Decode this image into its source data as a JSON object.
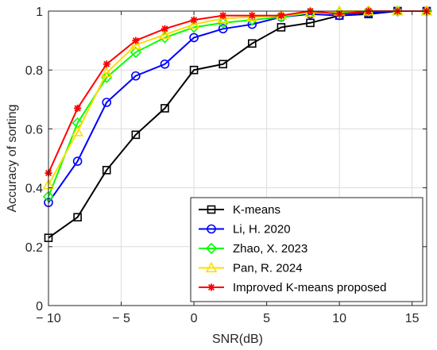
{
  "chart_data": {
    "type": "line",
    "title": "",
    "xlabel": "SNR(dB)",
    "ylabel": "Accuracy of sorting",
    "xlim": [
      -10,
      16
    ],
    "ylim": [
      0,
      1
    ],
    "xticks": [
      -10,
      -5,
      0,
      5,
      10,
      15
    ],
    "xtick_labels": [
      "− 10",
      "− 5",
      "0",
      "5",
      "10",
      "15"
    ],
    "yticks": [
      0,
      0.2,
      0.4,
      0.6,
      0.8,
      1
    ],
    "ytick_labels": [
      "0",
      "0.2",
      "0.4",
      "0.6",
      "0.8",
      "1"
    ],
    "grid": true,
    "legend_position": "bottom-right",
    "x": [
      -10,
      -8,
      -6,
      -4,
      -2,
      0,
      2,
      4,
      6,
      8,
      10,
      12,
      14,
      16
    ],
    "series": [
      {
        "name": "K-means",
        "color": "#000000",
        "marker": "square",
        "values": [
          0.23,
          0.3,
          0.46,
          0.58,
          0.67,
          0.8,
          0.82,
          0.89,
          0.945,
          0.96,
          0.985,
          0.99,
          1.0,
          1.0
        ]
      },
      {
        "name": "Li, H. 2020",
        "color": "#0000ff",
        "marker": "circle",
        "values": [
          0.35,
          0.49,
          0.69,
          0.78,
          0.82,
          0.91,
          0.94,
          0.955,
          0.98,
          0.99,
          0.985,
          0.995,
          1.0,
          1.0
        ]
      },
      {
        "name": "Zhao, X. 2023",
        "color": "#00ff00",
        "marker": "diamond",
        "values": [
          0.37,
          0.62,
          0.775,
          0.86,
          0.91,
          0.945,
          0.96,
          0.97,
          0.98,
          0.995,
          0.995,
          1.0,
          1.0,
          1.0
        ]
      },
      {
        "name": "Pan, R. 2024",
        "color": "#ffdd00",
        "marker": "triangle",
        "values": [
          0.41,
          0.59,
          0.79,
          0.885,
          0.92,
          0.955,
          0.975,
          0.98,
          0.985,
          0.995,
          1.0,
          1.0,
          1.0,
          1.0
        ]
      },
      {
        "name": "Improved K-means proposed",
        "color": "#ff0000",
        "marker": "asterisk",
        "values": [
          0.45,
          0.67,
          0.82,
          0.9,
          0.94,
          0.97,
          0.985,
          0.985,
          0.985,
          1.0,
          0.99,
          1.0,
          1.0,
          1.0
        ]
      }
    ]
  }
}
